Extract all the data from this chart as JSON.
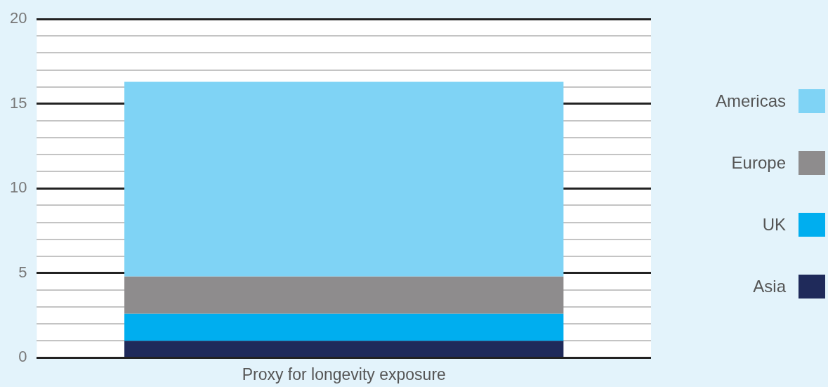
{
  "chart_data": {
    "type": "bar",
    "stacked": true,
    "categories": [
      "Proxy for longevity exposure"
    ],
    "series": [
      {
        "name": "Asia",
        "color": "#1f2a5a",
        "values": [
          1.0
        ]
      },
      {
        "name": "UK",
        "color": "#00aeef",
        "values": [
          1.6
        ]
      },
      {
        "name": "Europe",
        "color": "#8e8c8d",
        "values": [
          2.2
        ]
      },
      {
        "name": "Americas",
        "color": "#7fd3f5",
        "values": [
          11.5
        ]
      }
    ],
    "ylim": [
      0,
      20
    ],
    "yticks": [
      0,
      {
        "value": 1,
        "label": null
      },
      {
        "value": 2,
        "label": null
      },
      {
        "value": 3,
        "label": null
      },
      {
        "value": 4,
        "label": null
      },
      5,
      {
        "value": 6,
        "label": null
      },
      {
        "value": 7,
        "label": null
      },
      {
        "value": 8,
        "label": null
      },
      {
        "value": 9,
        "label": null
      },
      10,
      {
        "value": 11,
        "label": null
      },
      {
        "value": 12,
        "label": null
      },
      {
        "value": 13,
        "label": null
      },
      {
        "value": 14,
        "label": null
      },
      15,
      {
        "value": 16,
        "label": null
      },
      {
        "value": 17,
        "label": null
      },
      {
        "value": 18,
        "label": null
      },
      {
        "value": 19,
        "label": null
      },
      20
    ],
    "grid": "y",
    "legend": "right"
  }
}
